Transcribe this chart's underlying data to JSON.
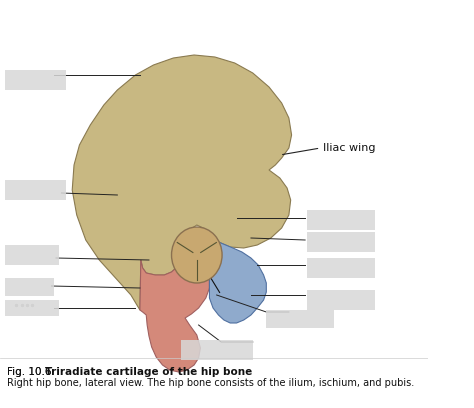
{
  "background_color": "#ffffff",
  "fig_width": 4.74,
  "fig_height": 4.08,
  "title_bold": "Triradiate cartilage of the hip bone",
  "title_prefix": "Fig. 10.6 ",
  "subtitle": "Right hip bone, lateral view. The hip bone consists of the ilium, ischium, and pubis.",
  "iliac_wing_color": "#c8b882",
  "ischium_color": "#d4897a",
  "pubis_color": "#8faacc",
  "label_visible": "Iliac wing",
  "label_line_color": "#222222",
  "blurred_label_color": "#d0d0d0",
  "annotation_font_size": 8,
  "caption_font_size": 7.5
}
